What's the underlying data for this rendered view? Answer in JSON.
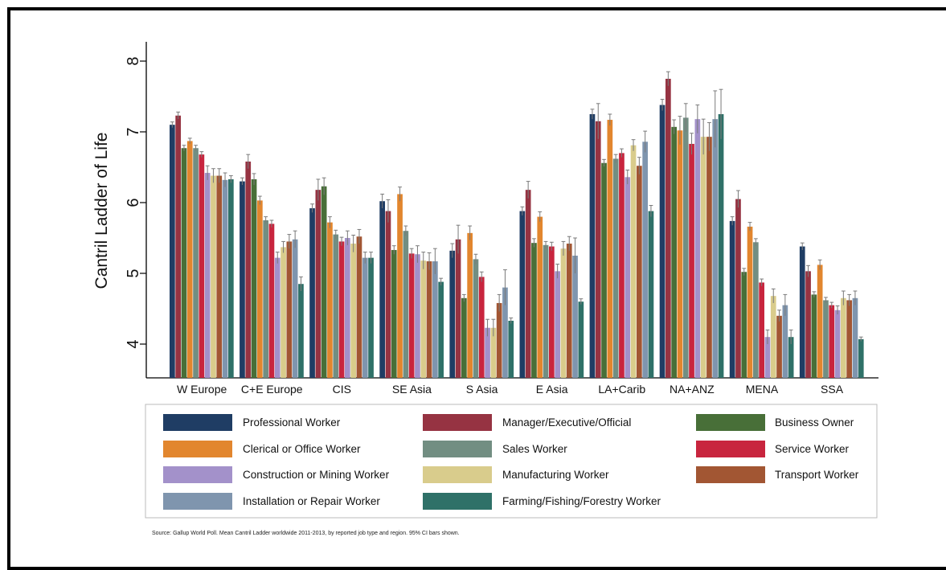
{
  "chart_data": {
    "type": "bar",
    "ylabel": "Cantril Ladder of Life",
    "xlabel": "",
    "ylim": [
      3.5,
      8.2
    ],
    "yticks": [
      4,
      5,
      6,
      7,
      8
    ],
    "grid": false,
    "error_bars": "95% CI",
    "legend_position": "bottom",
    "source": "Source: Gallup World Poll. Mean Cantril Ladder worldwide 2011-2013, by reported job type and region. 95% CI bars shown.",
    "categories": [
      "W Europe",
      "C+E Europe",
      "CIS",
      "SE Asia",
      "S Asia",
      "E Asia",
      "LA+Carib",
      "NA+ANZ",
      "MENA",
      "SSA"
    ],
    "series": [
      {
        "name": "Professional Worker",
        "color": "#1f3d64",
        "values": [
          7.1,
          6.3,
          5.92,
          6.02,
          5.32,
          5.88,
          7.25,
          7.38,
          5.74,
          5.38
        ],
        "err": [
          0.04,
          0.05,
          0.06,
          0.1,
          0.1,
          0.06,
          0.07,
          0.08,
          0.06,
          0.05
        ]
      },
      {
        "name": "Manager/Executive/Official",
        "color": "#963342",
        "values": [
          7.23,
          6.58,
          6.18,
          5.88,
          5.48,
          6.18,
          7.15,
          7.75,
          6.05,
          5.03
        ],
        "err": [
          0.05,
          0.1,
          0.15,
          0.16,
          0.2,
          0.12,
          0.25,
          0.1,
          0.12,
          0.08
        ]
      },
      {
        "name": "Business Owner",
        "color": "#486f38",
        "values": [
          6.77,
          6.33,
          6.23,
          5.33,
          4.65,
          5.43,
          6.56,
          7.07,
          5.02,
          4.7
        ],
        "err": [
          0.04,
          0.08,
          0.12,
          0.06,
          0.05,
          0.06,
          0.05,
          0.1,
          0.05,
          0.04
        ]
      },
      {
        "name": "Clerical or Office Worker",
        "color": "#e2862e",
        "values": [
          6.87,
          6.03,
          5.72,
          6.12,
          5.57,
          5.8,
          7.17,
          7.02,
          5.66,
          5.12
        ],
        "err": [
          0.04,
          0.06,
          0.08,
          0.1,
          0.1,
          0.07,
          0.08,
          0.2,
          0.06,
          0.07
        ]
      },
      {
        "name": "Sales Worker",
        "color": "#728e82",
        "values": [
          6.77,
          5.75,
          5.55,
          5.6,
          5.2,
          5.4,
          6.62,
          7.2,
          5.44,
          4.62
        ],
        "err": [
          0.04,
          0.05,
          0.06,
          0.07,
          0.07,
          0.05,
          0.06,
          0.2,
          0.05,
          0.04
        ]
      },
      {
        "name": "Service Worker",
        "color": "#c8253e",
        "values": [
          6.68,
          5.7,
          5.45,
          5.28,
          4.95,
          5.38,
          6.7,
          6.83,
          4.87,
          4.55
        ],
        "err": [
          0.04,
          0.05,
          0.06,
          0.07,
          0.07,
          0.06,
          0.06,
          0.15,
          0.05,
          0.04
        ]
      },
      {
        "name": "Construction or Mining Worker",
        "color": "#a391ca",
        "values": [
          6.42,
          5.22,
          5.5,
          5.27,
          4.23,
          5.03,
          6.36,
          7.18,
          4.1,
          4.48
        ],
        "err": [
          0.1,
          0.08,
          0.1,
          0.12,
          0.12,
          0.1,
          0.1,
          0.2,
          0.1,
          0.06
        ]
      },
      {
        "name": "Manufacturing Worker",
        "color": "#d9cc8c",
        "values": [
          6.38,
          5.37,
          5.42,
          5.18,
          4.23,
          5.35,
          6.81,
          6.93,
          4.68,
          4.65
        ],
        "err": [
          0.1,
          0.08,
          0.12,
          0.12,
          0.12,
          0.1,
          0.08,
          0.25,
          0.1,
          0.1
        ]
      },
      {
        "name": "Transport Worker",
        "color": "#a25633",
        "values": [
          6.38,
          5.45,
          5.52,
          5.17,
          4.58,
          5.42,
          6.52,
          6.93,
          4.4,
          4.62
        ],
        "err": [
          0.1,
          0.1,
          0.1,
          0.12,
          0.12,
          0.1,
          0.12,
          0.2,
          0.08,
          0.08
        ]
      },
      {
        "name": "Installation or Repair Worker",
        "color": "#7f95ae",
        "values": [
          6.32,
          5.48,
          5.22,
          5.17,
          4.8,
          5.25,
          6.86,
          7.18,
          4.55,
          4.65
        ],
        "err": [
          0.1,
          0.12,
          0.08,
          0.18,
          0.25,
          0.25,
          0.15,
          0.4,
          0.15,
          0.1
        ]
      },
      {
        "name": "Farming/Fishing/Forestry Worker",
        "color": "#2f7168",
        "values": [
          6.33,
          4.85,
          5.22,
          4.88,
          4.33,
          4.6,
          5.88,
          7.25,
          4.1,
          4.07
        ],
        "err": [
          0.05,
          0.1,
          0.08,
          0.05,
          0.04,
          0.04,
          0.08,
          0.35,
          0.1,
          0.03
        ]
      }
    ],
    "legend_order": [
      "Professional Worker",
      "Manager/Executive/Official",
      "Business Owner",
      "Clerical or Office Worker",
      "Sales Worker",
      "Service Worker",
      "Construction or Mining Worker",
      "Manufacturing Worker",
      "Transport Worker",
      "Installation or Repair Worker",
      "Farming/Fishing/Forestry Worker"
    ]
  }
}
